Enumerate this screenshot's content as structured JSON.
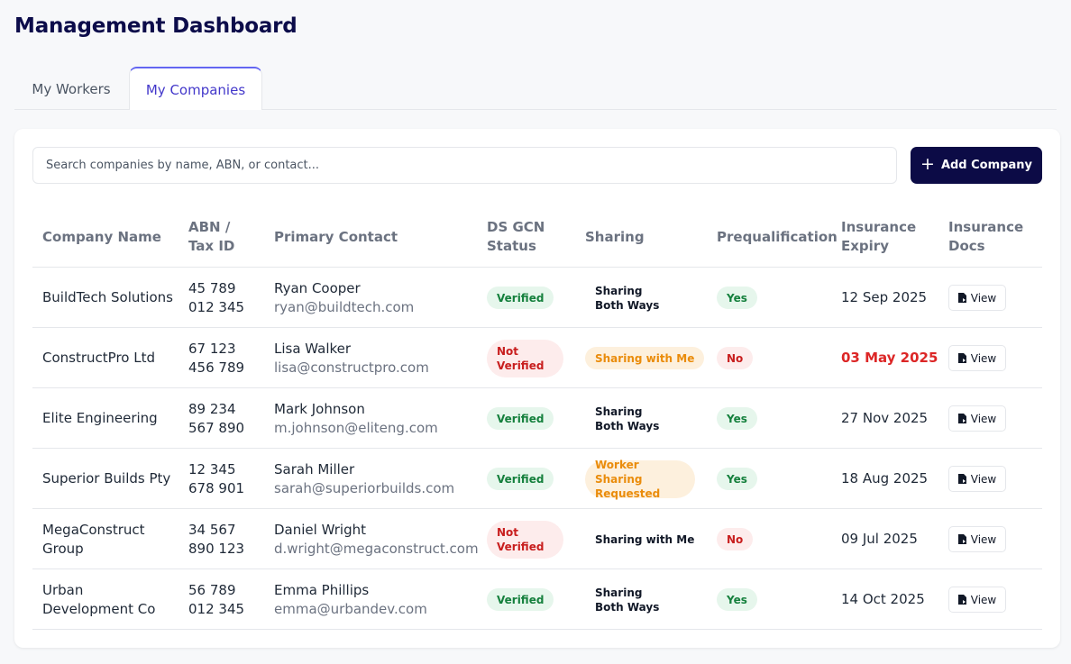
{
  "page": {
    "title": "Management Dashboard"
  },
  "tabs": [
    {
      "label": "My Workers",
      "active": false
    },
    {
      "label": "My Companies",
      "active": true
    }
  ],
  "toolbar": {
    "search_placeholder": "Search companies by name, ABN, or contact...",
    "add_label": "Add Company"
  },
  "table": {
    "headers": {
      "name": "Company Name",
      "abn": "ABN / Tax ID",
      "contact": "Primary Contact",
      "ds": "DS GCN Status",
      "sharing": "Sharing",
      "prequal": "Prequalification",
      "expiry": "Insurance Expiry",
      "docs": "Insurance Docs"
    },
    "view_label": "View",
    "rows": [
      {
        "name": "BuildTech Solutions",
        "abn": "45 789 012 345",
        "contact_name": "Ryan Cooper",
        "contact_email": "ryan@buildtech.com",
        "ds": "Verified",
        "sharing": "Sharing Both Ways",
        "prequal": "Yes",
        "expiry": "12 Sep 2025"
      },
      {
        "name": "ConstructPro Ltd",
        "abn": "67 123 456 789",
        "contact_name": "Lisa Walker",
        "contact_email": "lisa@constructpro.com",
        "ds": "Not Verified",
        "sharing": "Sharing with Me",
        "prequal": "No",
        "expiry": "03 May 2025"
      },
      {
        "name": "Elite Engineering",
        "abn": "89 234 567 890",
        "contact_name": "Mark Johnson",
        "contact_email": "m.johnson@eliteng.com",
        "ds": "Verified",
        "sharing": "Sharing Both Ways",
        "prequal": "Yes",
        "expiry": "27 Nov 2025"
      },
      {
        "name": "Superior Builds Pty",
        "abn": "12 345 678 901",
        "contact_name": "Sarah Miller",
        "contact_email": "sarah@superiorbuilds.com",
        "ds": "Verified",
        "sharing": "Worker Sharing Requested",
        "prequal": "Yes",
        "expiry": "18 Aug 2025"
      },
      {
        "name": "MegaConstruct Group",
        "abn": "34 567 890 123",
        "contact_name": "Daniel Wright",
        "contact_email": "d.wright@megaconstruct.com",
        "ds": "Not Verified",
        "sharing": "Sharing with Me",
        "prequal": "No",
        "expiry": "09 Jul 2025"
      },
      {
        "name": "Urban Development Co",
        "abn": "56 789 012 345",
        "contact_name": "Emma Phillips",
        "contact_email": "emma@urbandev.com",
        "ds": "Verified",
        "sharing": "Sharing Both Ways",
        "prequal": "Yes",
        "expiry": "14 Oct 2025"
      }
    ]
  },
  "colors": {
    "brand": "#0c0b46",
    "active_tab": "#4338ca",
    "success": "#15803d",
    "danger": "#c81e1e",
    "warning": "#ea8c0b"
  }
}
